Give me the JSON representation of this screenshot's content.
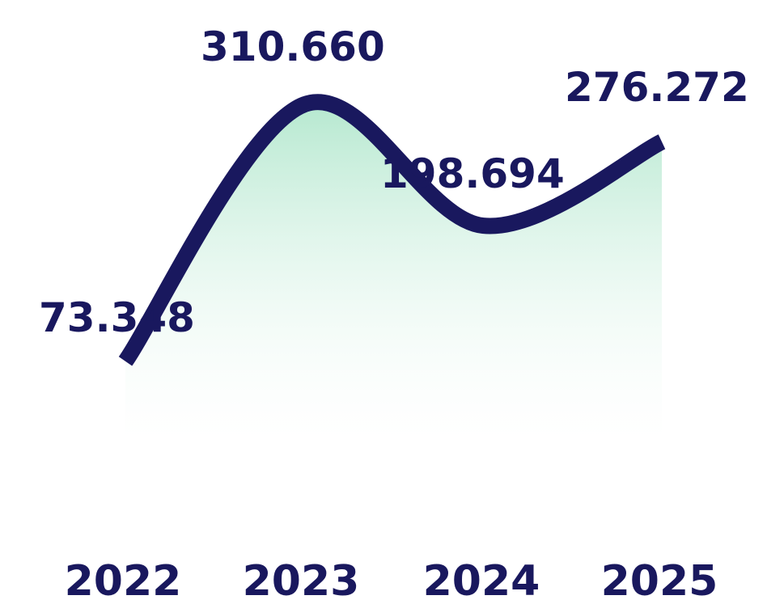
{
  "colors": {
    "line": "#19185e",
    "text": "#19185e",
    "area_top": "#b5e8cf",
    "area_bottom": "#ffffff"
  },
  "chart_data": {
    "type": "area",
    "categories": [
      "2022",
      "2023",
      "2024",
      "2025"
    ],
    "values": [
      73348,
      310660,
      198694,
      276272
    ],
    "data_labels": [
      "73.348",
      "310.660",
      "198.694",
      "276.272"
    ],
    "title": "",
    "xlabel": "",
    "ylabel": "",
    "ylim": [
      0,
      340000
    ],
    "grid": false,
    "legend": "none"
  }
}
